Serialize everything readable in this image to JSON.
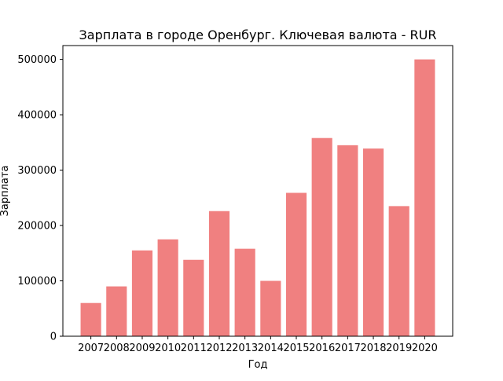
{
  "chart_data": {
    "type": "bar",
    "title": "Зарплата в городе Оренбург. Ключевая валюта - RUR",
    "xlabel": "Год",
    "ylabel": "Зарплата",
    "categories": [
      "2007",
      "2008",
      "2009",
      "2010",
      "2011",
      "2012",
      "2013",
      "2014",
      "2015",
      "2016",
      "2017",
      "2018",
      "2019",
      "2020"
    ],
    "values": [
      60000,
      90000,
      155000,
      175000,
      138000,
      226000,
      158000,
      100000,
      259000,
      358000,
      345000,
      339000,
      235000,
      500000
    ],
    "ylim": [
      0,
      525000
    ],
    "yticks": [
      0,
      100000,
      200000,
      300000,
      400000,
      500000
    ],
    "yticklabels": [
      "0",
      "100000",
      "200000",
      "300000",
      "400000",
      "500000"
    ],
    "bar_color": "#f08080",
    "grid": false,
    "legend": false
  }
}
